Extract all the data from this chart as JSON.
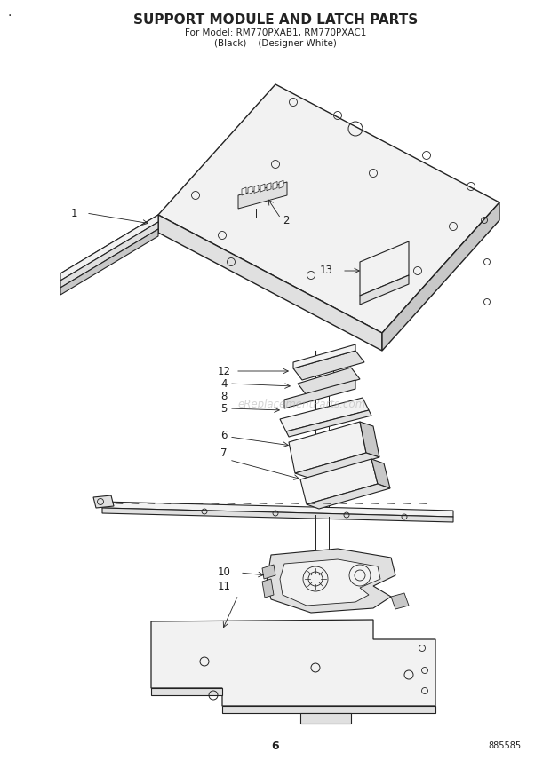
{
  "title": "SUPPORT MODULE AND LATCH PARTS",
  "subtitle1": "For Model: RM770PXAB1, RM770PXAC1",
  "subtitle2": "(Black)    (Designer White)",
  "page_number": "6",
  "part_number": "885585.",
  "watermark": "eReplacementParts.com",
  "bg": "#ffffff",
  "lc": "#222222",
  "gray1": "#f2f2f2",
  "gray2": "#e0e0e0",
  "gray3": "#c8c8c8",
  "gray4": "#b0b0b0"
}
